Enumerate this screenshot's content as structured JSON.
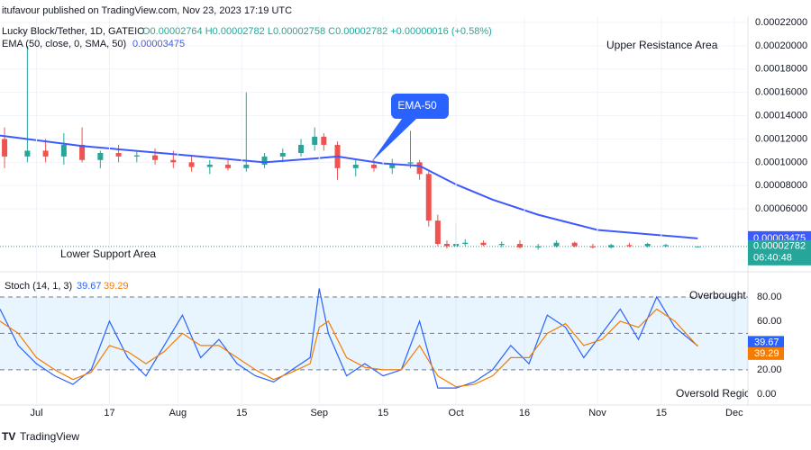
{
  "header": {
    "publisher": "itufavour published on TradingView.com, Nov 23, 2023 17:19 UTC",
    "brand": "TradingView"
  },
  "chart_data": [
    {
      "type": "candlestick",
      "symbol": "Lucky Block/Tether, 1D, GATEIO",
      "ohlc_text": "O0.00002764 H0.00002782 L0.00002758 C0.00002782 +0.00000016 (+0.58%)",
      "up_color": "#26a69a",
      "down_color": "#ef5350",
      "x": [
        -7,
        -2,
        2,
        6,
        10,
        14,
        18,
        22,
        26,
        30,
        34,
        38,
        42,
        46,
        50,
        54,
        58,
        61,
        63,
        66,
        70,
        74,
        78,
        82,
        84,
        86,
        88,
        90,
        92,
        94,
        98,
        102,
        106,
        110,
        114,
        118,
        122,
        126,
        130,
        134,
        138,
        145
      ],
      "open": [
        0.00012,
        0.000105,
        0.00011,
        0.000105,
        0.000115,
        0.000102,
        0.000108,
        0.000105,
        0.000106,
        0.000102,
        0.0001,
        9.6e-05,
        9.8e-05,
        9.5e-05,
        9.8e-05,
        0.000105,
        0.000108,
        0.000115,
        0.000122,
        0.000115,
        9.5e-05,
        9.8e-05,
        9.5e-05,
        9.9e-05,
        0.0001,
        9e-05,
        5e-05,
        3e-05,
        2.8e-05,
        3e-05,
        3.1e-05,
        2.9e-05,
        3e-05,
        2.7e-05,
        2.8e-05,
        3.1e-05,
        2.8e-05,
        2.7e-05,
        2.9e-05,
        2.8e-05,
        2.8e-05,
        2.764e-05
      ],
      "high": [
        0.00013,
        0.0002,
        0.00012,
        0.000125,
        0.00013,
        0.00011,
        0.000115,
        0.00011,
        0.000112,
        0.00011,
        0.000105,
        0.000102,
        0.000103,
        0.00016,
        0.000108,
        0.000112,
        0.00012,
        0.00013,
        0.000125,
        0.000118,
        0.000102,
        0.000102,
        0.000103,
        0.000127,
        0.000102,
        9.2e-05,
        5.5e-05,
        3.3e-05,
        4.8e-05,
        3.4e-05,
        3.3e-05,
        3.2e-05,
        3.3e-05,
        3e-05,
        3.3e-05,
        3.2e-05,
        3e-05,
        3e-05,
        3.1e-05,
        3.1e-05,
        3e-05,
        2.782e-05
      ],
      "low": [
        9.5e-05,
        0.0001,
        0.0001,
        9.8e-05,
        0.0001,
        9.5e-05,
        0.0001,
        0.0001,
        9.8e-05,
        9.5e-05,
        9.2e-05,
        9e-05,
        9.3e-05,
        9.2e-05,
        9.5e-05,
        0.0001,
        0.000105,
        0.00011,
        0.00011,
        8.5e-05,
        8.8e-05,
        9.2e-05,
        9e-05,
        9.5e-05,
        8.5e-05,
        4.5e-05,
        2.8e-05,
        2.6e-05,
        2.7e-05,
        2.8e-05,
        2.8e-05,
        2.7e-05,
        2.6e-05,
        2.5e-05,
        2.7e-05,
        2.7e-05,
        2.6e-05,
        2.6e-05,
        2.7e-05,
        2.7e-05,
        2.7e-05,
        2.758e-05
      ],
      "close": [
        0.000105,
        0.00011,
        0.000105,
        0.000115,
        0.000102,
        0.000108,
        0.000105,
        0.000106,
        0.000102,
        0.0001,
        9.6e-05,
        9.8e-05,
        9.5e-05,
        9.8e-05,
        0.000105,
        0.000108,
        0.000115,
        0.000122,
        0.000115,
        9.5e-05,
        9.8e-05,
        9.5e-05,
        9.9e-05,
        0.0001,
        9e-05,
        5e-05,
        3e-05,
        2.8e-05,
        3e-05,
        3.1e-05,
        2.9e-05,
        3e-05,
        2.7e-05,
        2.8e-05,
        3.1e-05,
        2.8e-05,
        2.7e-05,
        2.9e-05,
        2.8e-05,
        3e-05,
        2.9e-05,
        2.782e-05
      ],
      "ema": {
        "name": "EMA (50, close, 0, SMA, 50)",
        "color": "#3d5afe",
        "x": [
          -8,
          10,
          30,
          50,
          60,
          66,
          76,
          84,
          92,
          100,
          110,
          123,
          135,
          145
        ],
        "values": [
          0.000123,
          0.000114,
          0.000107,
          0.0001,
          0.000103,
          0.000105,
          9.9e-05,
          9.7e-05,
          8.1e-05,
          6.8e-05,
          5.5e-05,
          4.2e-05,
          3.8e-05,
          3.475e-05
        ]
      },
      "ema_last": {
        "value": 3.475e-05,
        "label": "0.00003475"
      },
      "last_price": {
        "value": 2.782e-05,
        "label": "0.00002782"
      },
      "countdown": "06:40:48",
      "annotations": [
        "Upper Resistance Area",
        "Lower Support Area",
        "EMA-50"
      ],
      "xlim": [
        -8,
        156
      ],
      "ylim": [
        7.6e-06,
        0.0002254
      ],
      "yticks": [
        {
          "value": 6e-05,
          "label": "0.00006000"
        },
        {
          "value": 8e-05,
          "label": "0.00008000"
        },
        {
          "value": 0.0001,
          "label": "0.00010000"
        },
        {
          "value": 0.00012,
          "label": "0.00012000"
        },
        {
          "value": 0.00014,
          "label": "0.00014000"
        },
        {
          "value": 0.00016,
          "label": "0.00016000"
        },
        {
          "value": 0.00018,
          "label": "0.00018000"
        },
        {
          "value": 0.0002,
          "label": "0.00020000"
        },
        {
          "value": 0.00022,
          "label": "0.00022000"
        }
      ],
      "xticks": [
        {
          "value": 0,
          "label": "Jul"
        },
        {
          "value": 16,
          "label": "17"
        },
        {
          "value": 31,
          "label": "Aug"
        },
        {
          "value": 45,
          "label": "15"
        },
        {
          "value": 62,
          "label": "Sep"
        },
        {
          "value": 76,
          "label": "15"
        },
        {
          "value": 92,
          "label": "Oct"
        },
        {
          "value": 107,
          "label": "16"
        },
        {
          "value": 123,
          "label": "Nov"
        },
        {
          "value": 137,
          "label": "15"
        },
        {
          "value": 153,
          "label": "Dec"
        }
      ]
    },
    {
      "type": "line",
      "title": "Stoch (14, 1, 3)",
      "x": [
        -8,
        -4,
        0,
        4,
        8,
        12,
        16,
        20,
        24,
        28,
        32,
        36,
        40,
        44,
        48,
        52,
        56,
        60,
        62,
        64,
        68,
        72,
        76,
        80,
        84,
        88,
        92,
        96,
        100,
        104,
        108,
        112,
        116,
        120,
        124,
        128,
        132,
        136,
        140,
        145
      ],
      "series": [
        {
          "color": "#2962ff",
          "last_label": "39.67",
          "values": [
            70,
            40,
            25,
            15,
            8,
            20,
            60,
            30,
            15,
            40,
            65,
            30,
            45,
            25,
            15,
            10,
            20,
            30,
            87,
            50,
            15,
            25,
            15,
            20,
            60,
            5,
            5,
            10,
            20,
            40,
            25,
            65,
            55,
            30,
            50,
            70,
            45,
            80,
            55,
            39.67
          ]
        },
        {
          "color": "#f57c00",
          "last_label": "39.29",
          "values": [
            60,
            50,
            30,
            20,
            12,
            18,
            40,
            35,
            25,
            35,
            50,
            40,
            40,
            30,
            20,
            12,
            18,
            25,
            55,
            60,
            30,
            22,
            20,
            20,
            40,
            15,
            6,
            8,
            15,
            30,
            30,
            50,
            58,
            40,
            45,
            60,
            55,
            70,
            60,
            39.29
          ]
        }
      ],
      "levels": [
        80,
        50,
        20
      ],
      "level_texts": [
        "Overbought Level",
        "Oversold Region"
      ],
      "xlim": [
        -8,
        156
      ],
      "ylim": [
        -9,
        98.5
      ],
      "yticks": [
        {
          "value": 0,
          "label": "0.00"
        },
        {
          "value": 20,
          "label": "20.00"
        },
        {
          "value": 60,
          "label": "60.00"
        },
        {
          "value": 80,
          "label": "80.00"
        }
      ]
    }
  ]
}
